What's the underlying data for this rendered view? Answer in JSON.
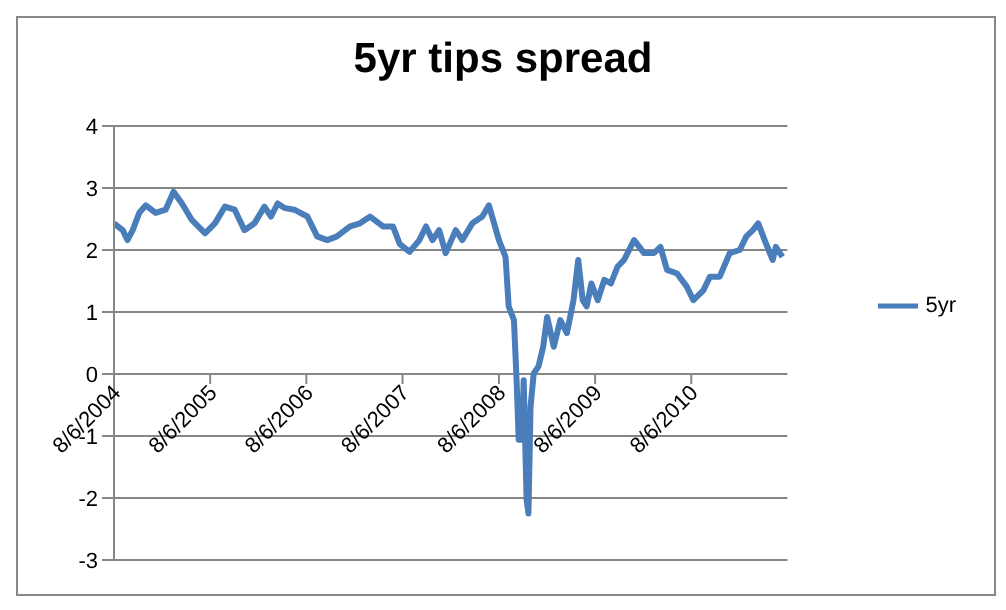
{
  "chart_data": {
    "type": "line",
    "title": "5yr tips spread",
    "xlim": [
      "2004-08-06",
      "2011-08-06"
    ],
    "xticks": [
      {
        "value": "2004-08-06",
        "label": "8/6/2004"
      },
      {
        "value": "2005-08-06",
        "label": "8/6/2005"
      },
      {
        "value": "2006-08-06",
        "label": "8/6/2006"
      },
      {
        "value": "2007-08-06",
        "label": "8/6/2007"
      },
      {
        "value": "2008-08-06",
        "label": "8/6/2008"
      },
      {
        "value": "2009-08-06",
        "label": "8/6/2009"
      },
      {
        "value": "2010-08-06",
        "label": "8/6/2010"
      }
    ],
    "ylim": [
      -3,
      4
    ],
    "yticks": [
      -3,
      -2,
      -1,
      0,
      1,
      2,
      3,
      4
    ],
    "grid": "y",
    "legend": "right",
    "marker": "none",
    "line_style": "solid",
    "x": [
      "2004-08-06",
      "2004-09-08",
      "2004-09-26",
      "2004-10-16",
      "2004-11-10",
      "2004-12-05",
      "2005-01-11",
      "2005-02-18",
      "2005-03-20",
      "2005-04-21",
      "2005-05-29",
      "2005-07-18",
      "2005-08-24",
      "2005-10-01",
      "2005-11-07",
      "2005-12-14",
      "2006-01-21",
      "2006-02-28",
      "2006-03-25",
      "2006-04-19",
      "2006-05-14",
      "2006-06-21",
      "2006-08-10",
      "2006-09-16",
      "2006-10-24",
      "2006-11-30",
      "2007-01-19",
      "2007-02-26",
      "2007-04-05",
      "2007-05-24",
      "2007-07-01",
      "2007-07-26",
      "2007-09-02",
      "2007-10-09",
      "2007-11-03",
      "2007-11-28",
      "2007-12-23",
      "2008-01-17",
      "2008-02-24",
      "2008-03-20",
      "2008-04-27",
      "2008-06-04",
      "2008-06-29",
      "2008-08-06",
      "2008-08-31",
      "2008-09-12",
      "2008-10-02",
      "2008-10-12",
      "2008-10-20",
      "2008-11-01",
      "2008-11-08",
      "2008-11-19",
      "2008-11-26",
      "2008-12-04",
      "2008-12-16",
      "2009-01-03",
      "2009-01-21",
      "2009-02-05",
      "2009-03-02",
      "2009-03-27",
      "2009-04-21",
      "2009-05-16",
      "2009-06-03",
      "2009-06-20",
      "2009-07-05",
      "2009-07-23",
      "2009-08-16",
      "2009-09-10",
      "2009-10-05",
      "2009-10-30",
      "2009-11-24",
      "2010-01-01",
      "2010-02-08",
      "2010-03-17",
      "2010-04-11",
      "2010-05-06",
      "2010-06-13",
      "2010-07-20",
      "2010-08-14",
      "2010-09-21",
      "2010-10-16",
      "2010-11-22",
      "2010-12-30",
      "2011-02-06",
      "2011-03-03",
      "2011-03-28",
      "2011-04-17",
      "2011-05-17",
      "2011-06-11",
      "2011-06-23",
      "2011-07-18"
    ],
    "series": [
      {
        "name": "5yr",
        "color": "#4a7ebb",
        "values": [
          2.43,
          2.32,
          2.16,
          2.32,
          2.6,
          2.72,
          2.6,
          2.65,
          2.94,
          2.75,
          2.48,
          2.27,
          2.43,
          2.7,
          2.65,
          2.32,
          2.43,
          2.7,
          2.54,
          2.75,
          2.68,
          2.65,
          2.54,
          2.22,
          2.16,
          2.22,
          2.38,
          2.43,
          2.54,
          2.38,
          2.38,
          2.1,
          1.97,
          2.16,
          2.38,
          2.16,
          2.32,
          1.95,
          2.32,
          2.16,
          2.43,
          2.54,
          2.72,
          2.16,
          1.89,
          1.09,
          0.87,
          -0.1,
          -1.06,
          -1.06,
          -0.1,
          -2.03,
          -2.25,
          -0.53,
          0.01,
          0.12,
          0.44,
          0.92,
          0.44,
          0.87,
          0.66,
          1.19,
          1.84,
          1.19,
          1.09,
          1.46,
          1.19,
          1.52,
          1.46,
          1.73,
          1.84,
          2.16,
          1.95,
          1.95,
          2.05,
          1.68,
          1.62,
          1.41,
          1.19,
          1.35,
          1.57,
          1.57,
          1.95,
          2.0,
          2.22,
          2.32,
          2.43,
          2.1,
          1.84,
          2.05,
          1.89
        ]
      }
    ]
  }
}
